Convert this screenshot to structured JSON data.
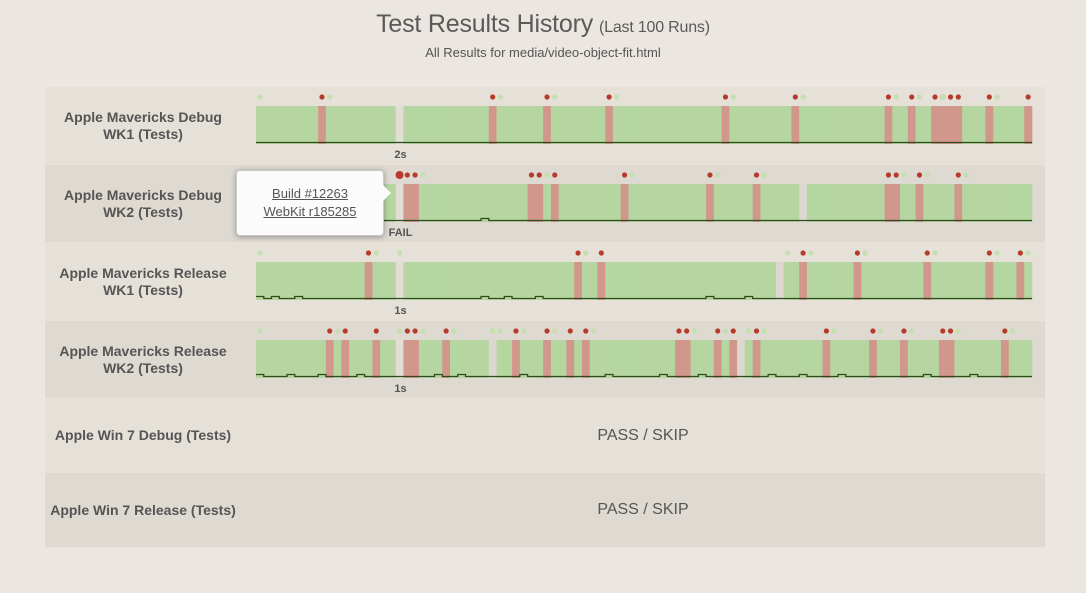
{
  "page": {
    "title": "Test Results History",
    "title_suffix": "(Last 100 Runs)",
    "subtitle": "All Results for media/video-object-fit.html"
  },
  "colors": {
    "pass": "#b5d6a0",
    "fail": "#d1978d",
    "fail_dot": "#b73b2a",
    "pass_dot": "#c4dfb0",
    "skip": "#dcd8d0",
    "time_line": "#2f4a1d",
    "highlight": "#e2ded6"
  },
  "popover": {
    "build_link": "Build #12263",
    "revision_link": "WebKit r185285"
  },
  "runs_total": 100,
  "rows": [
    {
      "label": "Apple Mavericks Debug WK1 (Tests)",
      "type": "timeline",
      "highlight": 18,
      "fail_runs": [
        8,
        30,
        37,
        45,
        60,
        69,
        81,
        84,
        87,
        88,
        89,
        90,
        94,
        99
      ],
      "skip_runs": [],
      "pass_dot_runs": [
        0,
        9,
        31,
        38,
        46,
        61,
        70,
        82,
        85,
        88,
        95
      ],
      "time_levels": [],
      "duration_label": "2s"
    },
    {
      "label": "Apple Mavericks Debug WK2 (Tests)",
      "type": "timeline",
      "highlight": 18,
      "selected": 18,
      "fail_runs": [
        19,
        20,
        35,
        36,
        38,
        47,
        58,
        64,
        81,
        82,
        85,
        90
      ],
      "skip_runs": [
        70
      ],
      "pass_dot_runs": [
        21,
        37,
        48,
        59,
        65,
        83,
        86,
        91
      ],
      "time_levels": [
        {
          "run": 29,
          "level": 1
        }
      ],
      "duration_label": "FAIL"
    },
    {
      "label": "Apple Mavericks Release WK1 (Tests)",
      "type": "timeline",
      "highlight": 18,
      "fail_runs": [
        14,
        41,
        44,
        70,
        77,
        86,
        94,
        98
      ],
      "skip_runs": [
        67
      ],
      "pass_dot_runs": [
        0,
        15,
        18,
        42,
        68,
        71,
        78,
        87,
        95,
        99
      ],
      "time_levels": [
        {
          "run": 0,
          "level": 1
        },
        {
          "run": 2,
          "level": 1
        },
        {
          "run": 5,
          "level": 1
        },
        {
          "run": 29,
          "level": 1
        },
        {
          "run": 32,
          "level": 1
        },
        {
          "run": 36,
          "level": 1
        },
        {
          "run": 58,
          "level": 1
        },
        {
          "run": 63,
          "level": 1
        }
      ],
      "duration_label": "1s"
    },
    {
      "label": "Apple Mavericks Release WK2 (Tests)",
      "type": "timeline",
      "highlight": 18,
      "fail_runs": [
        9,
        11,
        15,
        19,
        20,
        24,
        33,
        37,
        40,
        42,
        54,
        55,
        59,
        61,
        64,
        73,
        79,
        83,
        88,
        89,
        96
      ],
      "skip_runs": [
        30,
        62
      ],
      "pass_dot_runs": [
        0,
        10,
        18,
        21,
        25,
        30,
        31,
        34,
        38,
        43,
        56,
        60,
        63,
        65,
        74,
        80,
        84,
        90,
        97
      ],
      "time_levels": [
        {
          "run": 0,
          "level": 1
        },
        {
          "run": 4,
          "level": 1
        },
        {
          "run": 8,
          "level": 1
        },
        {
          "run": 13,
          "level": 1
        },
        {
          "run": 23,
          "level": 1
        },
        {
          "run": 26,
          "level": 1
        },
        {
          "run": 34,
          "level": 1
        },
        {
          "run": 45,
          "level": 1
        },
        {
          "run": 52,
          "level": 1
        },
        {
          "run": 57,
          "level": 1
        },
        {
          "run": 66,
          "level": 1
        },
        {
          "run": 70,
          "level": 1
        },
        {
          "run": 75,
          "level": 1
        },
        {
          "run": 86,
          "level": 1
        },
        {
          "run": 92,
          "level": 1
        }
      ],
      "duration_label": "1s"
    },
    {
      "label": "Apple Win 7 Debug (Tests)",
      "type": "status",
      "status": "PASS / SKIP"
    },
    {
      "label": "Apple Win 7 Release (Tests)",
      "type": "status",
      "status": "PASS / SKIP"
    }
  ]
}
